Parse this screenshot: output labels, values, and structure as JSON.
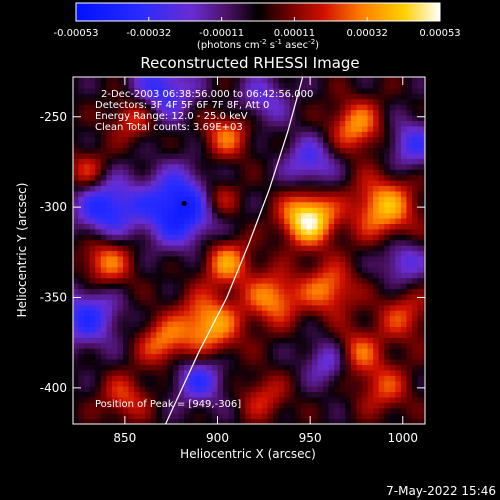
{
  "chart_data": {
    "type": "heatmap",
    "title": "Reconstructed RHESSI Image",
    "xlabel": "Heliocentric X (arcsec)",
    "ylabel": "Heliocentric Y (arcsec)",
    "xlim": [
      822,
      1012
    ],
    "ylim": [
      -420,
      -228
    ],
    "xticks": [
      850,
      900,
      950,
      1000
    ],
    "yticks": [
      -250,
      -300,
      -350,
      -400
    ],
    "colorbar": {
      "ticks": [
        "-0.00053",
        "-0.00032",
        "-0.00011",
        "0.00011",
        "0.00032",
        "0.00053"
      ],
      "range": [
        -0.00053,
        0.00053
      ],
      "label": "(photons cm",
      "label_sup1": "-2",
      "label_mid": " s",
      "label_sup2": "-1",
      "label_mid2": " asec",
      "label_sup3": "-2",
      "label_end": ")"
    },
    "annotations": {
      "time_range": "2-Dec-2003 06:38:56.000 to 06:42:56.000",
      "detectors": "Detectors: 3F 4F 5F 6F 7F 8F, Att 0",
      "energy": "Energy Range: 12.0 - 25.0 keV",
      "clean": "Clean    Total counts: 3.69E+03",
      "peak": "Position of Peak = [949,-306]"
    },
    "peak_position": [
      949,
      -306
    ],
    "center_marker": [
      882,
      -298
    ],
    "limb_curve": [
      [
        872,
        -420
      ],
      [
        890,
        -380
      ],
      [
        905,
        -350
      ],
      [
        917,
        -320
      ],
      [
        928,
        -290
      ],
      [
        938,
        -258
      ],
      [
        946,
        -228
      ]
    ],
    "footer_date": "7-May-2022 15:46"
  }
}
